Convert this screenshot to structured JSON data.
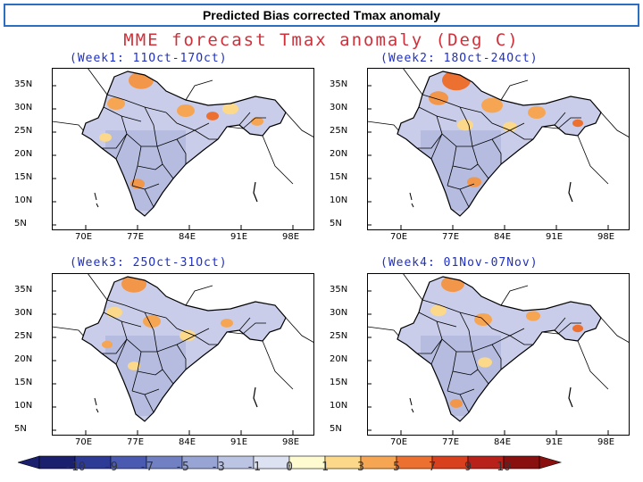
{
  "banner": {
    "title": "Predicted Bias corrected Tmax anomaly"
  },
  "map_title": "MME forecast Tmax anomaly (Deg C)",
  "panels": [
    {
      "title": "(Week1: 11Oct-17Oct)"
    },
    {
      "title": "(Week2: 18Oct-24Oct)"
    },
    {
      "title": "(Week3: 25Oct-31Oct)"
    },
    {
      "title": "(Week4: 01Nov-07Nov)"
    }
  ],
  "lat_labels": [
    "35N",
    "30N",
    "25N",
    "20N",
    "15N",
    "10N",
    "5N"
  ],
  "lon_labels": [
    "70E",
    "77E",
    "84E",
    "91E",
    "98E"
  ],
  "legend": {
    "labels": [
      "-10",
      "-9",
      "-7",
      "-5",
      "-3",
      "-1",
      "0",
      "1",
      "3",
      "5",
      "7",
      "9",
      "10"
    ],
    "colors": [
      "#1a1f6e",
      "#2d3a96",
      "#4a5ab0",
      "#7080c2",
      "#98a4d4",
      "#bcc4e4",
      "#dde2f2",
      "#fffbd0",
      "#fbd88a",
      "#f6a552",
      "#ec7030",
      "#d8401e",
      "#b8201a",
      "#8a1010"
    ]
  },
  "colors": {
    "banner_border": "#2c6fc2",
    "title_red": "#d0303a",
    "subtitle_blue": "#2030c0"
  }
}
